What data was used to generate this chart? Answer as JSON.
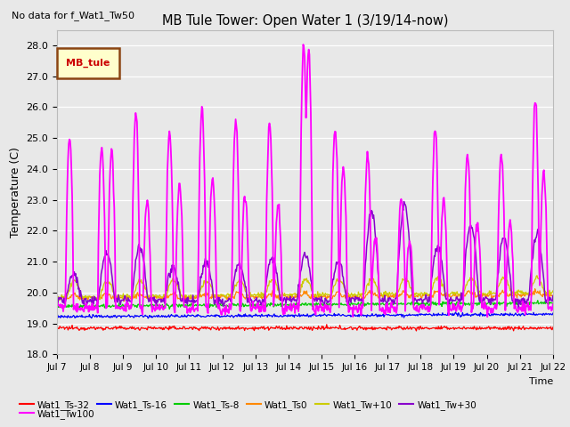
{
  "title": "MB Tule Tower: Open Water 1 (3/19/14-now)",
  "subtitle": "No data for f_Wat1_Tw50",
  "xlabel": "Time",
  "ylabel": "Temperature (C)",
  "ylim": [
    18.0,
    28.5
  ],
  "yticks": [
    18.0,
    19.0,
    20.0,
    21.0,
    22.0,
    23.0,
    24.0,
    25.0,
    26.0,
    27.0,
    28.0
  ],
  "xtick_labels": [
    "Jul 7",
    "Jul 8",
    "Jul 9",
    "Jul 10",
    "Jul 11",
    "Jul 12",
    "Jul 13",
    "Jul 14",
    "Jul 15",
    "Jul 16",
    "Jul 17",
    "Jul 18",
    "Jul 19",
    "Jul 20",
    "Jul 21",
    "Jul 22"
  ],
  "bg_color": "#e8e8e8",
  "legend_box_label": "MB_tule",
  "legend_box_bg": "#ffffcc",
  "legend_box_border": "#8b4513",
  "series": [
    {
      "label": "Wat1_Ts-32",
      "color": "#ff0000"
    },
    {
      "label": "Wat1_Ts-16",
      "color": "#0000ff"
    },
    {
      "label": "Wat1_Ts-8",
      "color": "#00cc00"
    },
    {
      "label": "Wat1_Ts0",
      "color": "#ff8800"
    },
    {
      "label": "Wat1_Tw+10",
      "color": "#cccc00"
    },
    {
      "label": "Wat1_Tw+30",
      "color": "#8800cc"
    },
    {
      "label": "Wat1_Tw100",
      "color": "#ff00ff"
    }
  ],
  "Tw100_peaks": [
    25.0,
    24.7,
    25.8,
    25.3,
    25.9,
    25.6,
    25.5,
    28.0,
    27.8,
    24.5,
    23.8,
    25.3,
    24.5,
    24.5,
    26.2
  ],
  "Tw30_peaks": [
    20.6,
    21.3,
    21.5,
    20.8,
    21.0,
    20.9,
    21.1,
    21.2,
    21.0,
    22.6,
    22.9,
    21.5,
    22.2,
    21.8,
    21.9
  ]
}
